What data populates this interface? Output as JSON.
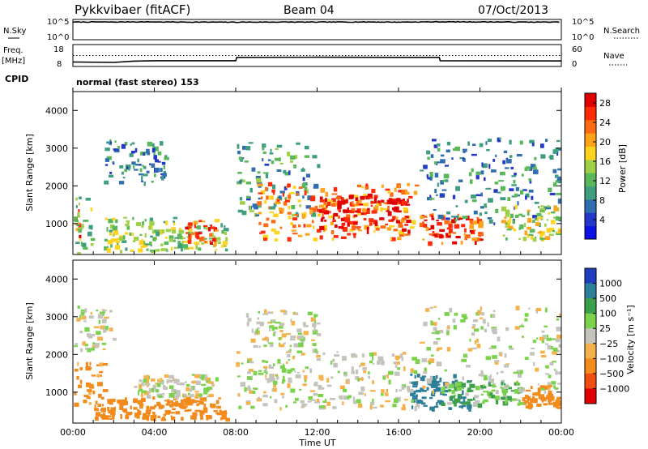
{
  "header": {
    "station": "Pykkvibaer (fitACF)",
    "beam": "Beam 04",
    "date": "07/Oct/2013"
  },
  "noise_panel": {
    "left_label": "N.Sky",
    "left_ticks": [
      "10^5",
      "10^0"
    ],
    "right_label": "N.Search",
    "right_ticks": [
      "10^5",
      "10^0"
    ]
  },
  "freq_panel": {
    "left_label_1": "Freq.",
    "left_label_2": "[MHz]",
    "left_ticks": [
      "18",
      "8"
    ],
    "right_label": "Nave",
    "right_ticks": [
      "60",
      "0"
    ]
  },
  "cpid": {
    "label": "CPID",
    "value": "normal (fast stereo) 153"
  },
  "x_axis": {
    "title": "Time UT",
    "ticks": [
      "00:00",
      "04:00",
      "08:00",
      "12:00",
      "16:00",
      "20:00",
      "00:00"
    ]
  },
  "power_panel": {
    "ylabel": "Slant Range [km]",
    "yticks": [
      "4000",
      "3000",
      "2000",
      "1000"
    ],
    "colorbar_label": "Power [dB]",
    "colorbar_ticks": [
      "28",
      "24",
      "20",
      "16",
      "12",
      "8",
      "4"
    ]
  },
  "velocity_panel": {
    "ylabel": "Slant Range [km]",
    "yticks": [
      "4000",
      "3000",
      "2000",
      "1000"
    ],
    "colorbar_label": "Velocity [m s⁻¹]",
    "colorbar_ticks": [
      "1000",
      "500",
      "100",
      "25",
      "−25",
      "−100",
      "−500",
      "−1000"
    ]
  },
  "chart_data": [
    {
      "type": "line",
      "xlim": [
        0,
        24
      ],
      "ylim": [
        1,
        100000
      ],
      "y_scale": "log",
      "series": [
        {
          "values": [
            [
              0,
              50000
            ],
            [
              1,
              55000
            ],
            [
              2,
              52000
            ],
            [
              3,
              60000
            ],
            [
              4,
              55000
            ],
            [
              6,
              50000
            ],
            [
              8,
              48000
            ],
            [
              10,
              52000
            ],
            [
              12,
              50000
            ],
            [
              14,
              55000
            ],
            [
              16,
              50000
            ],
            [
              18,
              60000
            ],
            [
              20,
              58000
            ],
            [
              22,
              52000
            ],
            [
              24,
              50000
            ]
          ]
        }
      ]
    },
    {
      "type": "line",
      "xlim": [
        0,
        24
      ],
      "ylim": [
        8,
        18
      ],
      "series": [
        {
          "values": [
            [
              0,
              9.5
            ],
            [
              2,
              9.3
            ],
            [
              3,
              10.0
            ],
            [
              4,
              10.2
            ],
            [
              8,
              10.2
            ],
            [
              8.05,
              12.0
            ],
            [
              12,
              12.1
            ],
            [
              16,
              12.0
            ],
            [
              18,
              12.0
            ],
            [
              18.05,
              10.2
            ],
            [
              24,
              10.1
            ]
          ]
        },
        {
          "values": [
            [
              0,
              13
            ],
            [
              24,
              13
            ]
          ]
        }
      ]
    },
    {
      "type": "heatmap",
      "xlim": [
        0,
        24
      ],
      "ylim": [
        180,
        4500
      ],
      "zlabel": "Power [dB]",
      "zlim": [
        0,
        30
      ],
      "features": [
        {
          "t": [
            0.0,
            0.3
          ],
          "r": [
            700,
            1400
          ],
          "v": 24
        },
        {
          "t": [
            0.0,
            1.0
          ],
          "r": [
            200,
            1800
          ],
          "v": 12
        },
        {
          "t": [
            1.5,
            4.5
          ],
          "r": [
            2100,
            3300
          ],
          "v": 8
        },
        {
          "t": [
            1.5,
            7.5
          ],
          "r": [
            300,
            1200
          ],
          "v": 14
        },
        {
          "t": [
            5.5,
            7.0
          ],
          "r": [
            500,
            1100
          ],
          "v": 24
        },
        {
          "t": [
            8.0,
            12.0
          ],
          "r": [
            1200,
            3200
          ],
          "v": 10
        },
        {
          "t": [
            9.0,
            16.8
          ],
          "r": [
            600,
            2100
          ],
          "v": 22
        },
        {
          "t": [
            12.0,
            16.5
          ],
          "r": [
            800,
            1800
          ],
          "v": 28
        },
        {
          "t": [
            17.0,
            20.0
          ],
          "r": [
            500,
            1300
          ],
          "v": 24
        },
        {
          "t": [
            17.0,
            24.0
          ],
          "r": [
            1000,
            3300
          ],
          "v": 8
        },
        {
          "t": [
            21.0,
            24.0
          ],
          "r": [
            600,
            1500
          ],
          "v": 16
        }
      ]
    },
    {
      "type": "heatmap",
      "xlim": [
        0,
        24
      ],
      "ylim": [
        180,
        4500
      ],
      "zlabel": "Velocity [m s⁻¹]",
      "zlim": [
        -1000,
        1000
      ],
      "features": [
        {
          "t": [
            0.0,
            2.0
          ],
          "r": [
            2100,
            3300
          ],
          "v": 0
        },
        {
          "t": [
            0.0,
            1.5
          ],
          "r": [
            700,
            1800
          ],
          "v": -150
        },
        {
          "t": [
            1.0,
            7.5
          ],
          "r": [
            300,
            900
          ],
          "v": -200
        },
        {
          "t": [
            3.0,
            7.0
          ],
          "r": [
            900,
            1500
          ],
          "v": 0
        },
        {
          "t": [
            8.0,
            17.0
          ],
          "r": [
            600,
            2100
          ],
          "v": 0
        },
        {
          "t": [
            8.5,
            12.0
          ],
          "r": [
            2100,
            3200
          ],
          "v": 0
        },
        {
          "t": [
            16.5,
            19.5
          ],
          "r": [
            600,
            1500
          ],
          "v": 600
        },
        {
          "t": [
            17.0,
            24.0
          ],
          "r": [
            1000,
            3300
          ],
          "v": 0
        },
        {
          "t": [
            18.0,
            22.0
          ],
          "r": [
            700,
            1300
          ],
          "v": 60
        },
        {
          "t": [
            22.0,
            24.0
          ],
          "r": [
            600,
            1200
          ],
          "v": -300
        }
      ]
    }
  ]
}
